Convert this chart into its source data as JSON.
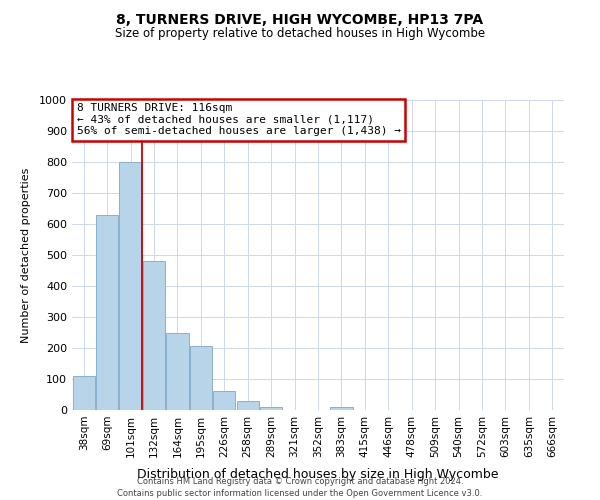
{
  "title": "8, TURNERS DRIVE, HIGH WYCOMBE, HP13 7PA",
  "subtitle": "Size of property relative to detached houses in High Wycombe",
  "xlabel": "Distribution of detached houses by size in High Wycombe",
  "ylabel": "Number of detached properties",
  "bar_labels": [
    "38sqm",
    "69sqm",
    "101sqm",
    "132sqm",
    "164sqm",
    "195sqm",
    "226sqm",
    "258sqm",
    "289sqm",
    "321sqm",
    "352sqm",
    "383sqm",
    "415sqm",
    "446sqm",
    "478sqm",
    "509sqm",
    "540sqm",
    "572sqm",
    "603sqm",
    "635sqm",
    "666sqm"
  ],
  "bar_values": [
    110,
    630,
    800,
    480,
    250,
    205,
    60,
    30,
    10,
    0,
    0,
    10,
    0,
    0,
    0,
    0,
    0,
    0,
    0,
    0,
    0
  ],
  "bar_color": "#b8d4e8",
  "bar_edge_color": "#8ab0cc",
  "vline_x": 2.5,
  "vline_color": "#cc0000",
  "annotation_text": "8 TURNERS DRIVE: 116sqm\n← 43% of detached houses are smaller (1,117)\n56% of semi-detached houses are larger (1,438) →",
  "annotation_box_color": "#ffffff",
  "annotation_box_edge": "#cc0000",
  "ylim": [
    0,
    1000
  ],
  "yticks": [
    0,
    100,
    200,
    300,
    400,
    500,
    600,
    700,
    800,
    900,
    1000
  ],
  "footer1": "Contains HM Land Registry data © Crown copyright and database right 2024.",
  "footer2": "Contains public sector information licensed under the Open Government Licence v3.0.",
  "background_color": "#ffffff",
  "grid_color": "#ccd8e8",
  "title_fontsize": 10,
  "subtitle_fontsize": 8.5,
  "annotation_fontsize": 8
}
